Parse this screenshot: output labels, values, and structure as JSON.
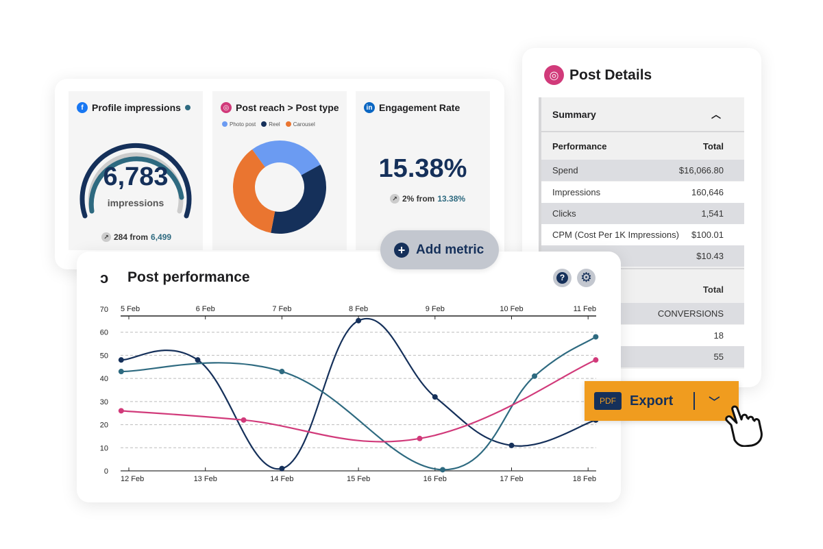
{
  "metrics": {
    "profile_impressions": {
      "title": "Profile impressions",
      "value": "6,783",
      "unit": "impressions",
      "change": "284 from",
      "previous": "6,499",
      "icon": "facebook-icon",
      "gauge_fraction": 0.93
    },
    "post_reach": {
      "title": "Post reach > Post type",
      "icon": "instagram-icon",
      "legend": [
        "Photo post",
        "Reel",
        "Carousel"
      ]
    },
    "engagement": {
      "title": "Engagement Rate",
      "value": "15.38%",
      "change": "2% from",
      "previous": "13.38%",
      "icon": "linkedin-icon"
    }
  },
  "add_metric": "Add metric",
  "post_details": {
    "title": "Post Details",
    "summary": "Summary",
    "header": [
      "Performance",
      "Total"
    ],
    "rows": [
      [
        "Spend",
        "$16,066.80"
      ],
      [
        "Impressions",
        "160,646"
      ],
      [
        "Clicks",
        "1,541"
      ],
      [
        "CPM (Cost Per 1K Impressions)",
        "$100.01"
      ],
      [
        "",
        "$10.43"
      ]
    ],
    "header2": "Total",
    "rows2": [
      "CONVERSIONS",
      "18",
      "55"
    ]
  },
  "export": {
    "badge": "PDF",
    "label": "Export"
  },
  "colors": {
    "navy": "#15305a",
    "teal": "#2e6a80",
    "pink": "#d13a7a",
    "orange": "#f09c1f",
    "light_blue": "#6b9bf2",
    "carousel": "#ea7530"
  },
  "chart_data": [
    {
      "type": "pie",
      "title": "Post reach > Post type",
      "categories": [
        "Photo post",
        "Reel",
        "Carousel"
      ],
      "values": [
        27,
        36,
        37
      ]
    },
    {
      "type": "line",
      "title": "Post performance",
      "ylim": [
        0,
        70
      ],
      "yticks": [
        0,
        10,
        20,
        30,
        40,
        50,
        60,
        70
      ],
      "top_x_ticks": [
        "5 Feb",
        "6 Feb",
        "7 Feb",
        "8 Feb",
        "9 Feb",
        "10 Feb",
        "11 Feb"
      ],
      "bottom_x_ticks": [
        "12 Feb",
        "13 Feb",
        "14 Feb",
        "15 Feb",
        "16 Feb",
        "17 Feb",
        "18 Feb"
      ],
      "grid": true,
      "series": [
        {
          "color": "#15305a",
          "x": [
            11.9,
            12.9,
            14.0,
            15.0,
            16.0,
            17.0,
            18.1
          ],
          "y": [
            48,
            48,
            1,
            65,
            32,
            11,
            22
          ]
        },
        {
          "color": "#2e6a80",
          "x": [
            11.9,
            14.0,
            16.1,
            17.3,
            18.1
          ],
          "y": [
            43,
            43,
            0.5,
            41,
            58
          ]
        },
        {
          "color": "#d13a7a",
          "x": [
            11.9,
            13.5,
            15.8,
            18.1
          ],
          "y": [
            26,
            22,
            14,
            48
          ]
        }
      ]
    }
  ]
}
